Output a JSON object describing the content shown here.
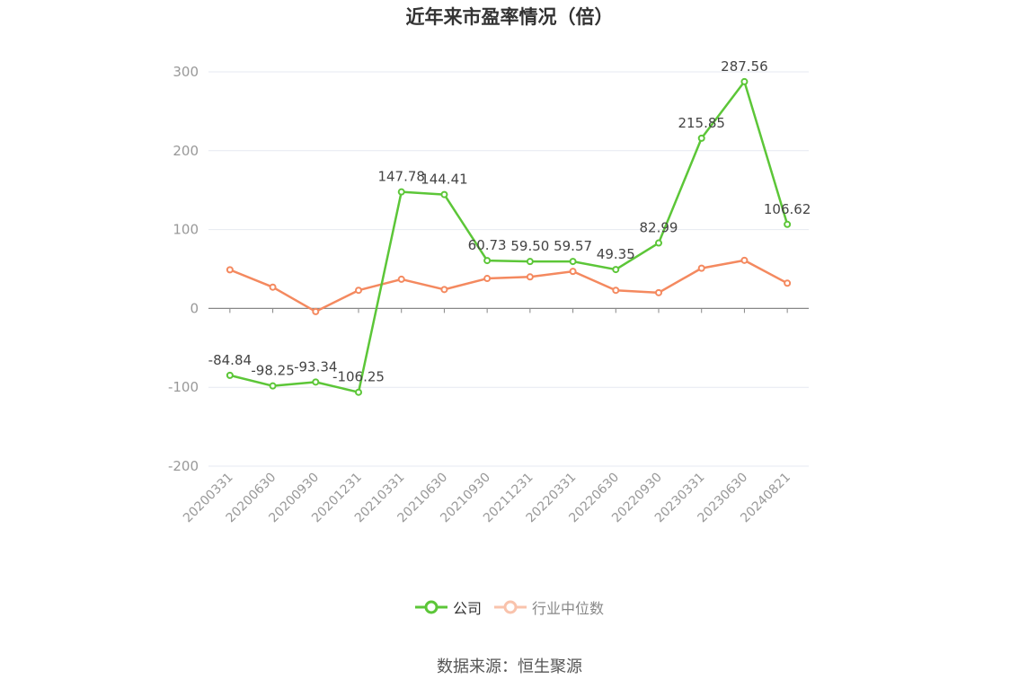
{
  "chart_data": {
    "type": "line",
    "title": "近年来市盈率情况（倍）",
    "categories": [
      "20200331",
      "20200630",
      "20200930",
      "20201231",
      "20210331",
      "20210630",
      "20210930",
      "20211231",
      "20220331",
      "20220630",
      "20220930",
      "20230331",
      "20230630",
      "20240821"
    ],
    "series": [
      {
        "name": "公司",
        "color": "#5cc638",
        "values": [
          -84.84,
          -98.25,
          -93.34,
          -106.25,
          147.78,
          144.41,
          60.73,
          59.5,
          59.57,
          49.35,
          82.99,
          215.85,
          287.56,
          106.62
        ],
        "data_labels": [
          "-84.84",
          "-98.25",
          "-93.34",
          "-106.25",
          "147.78",
          "144.41",
          "60.73",
          "59.50",
          "59.57",
          "49.35",
          "82.99",
          "215.85",
          "287.56",
          "106.62"
        ]
      },
      {
        "name": "行业中位数",
        "color": "#f4895f",
        "values": [
          49,
          27,
          -4,
          23,
          37,
          24,
          38,
          40,
          47,
          23,
          20,
          51,
          61,
          32
        ]
      }
    ],
    "ylim": [
      -200,
      300
    ],
    "yticks": [
      -200,
      -100,
      0,
      100,
      200,
      300
    ],
    "grid": true,
    "legend_position": "bottom-center"
  },
  "source": "数据来源：恒生聚源"
}
